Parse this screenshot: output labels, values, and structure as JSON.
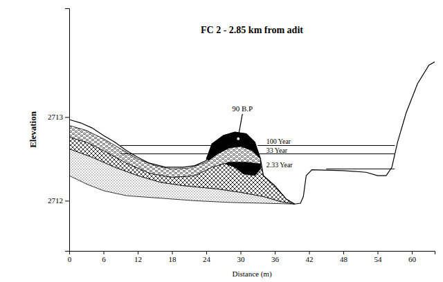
{
  "chart_data": {
    "type": "area",
    "title": "FC 2 - 2.85 km from adit",
    "xlabel": "Distance (m)",
    "ylabel": "Elevation",
    "xlim": [
      0,
      64
    ],
    "ylim": [
      2711.4,
      2714.3
    ],
    "xticks": [
      0,
      6,
      12,
      18,
      24,
      30,
      36,
      42,
      48,
      54,
      60
    ],
    "yticks": [
      2712,
      2713
    ],
    "grid": false,
    "series": [
      {
        "type": "area",
        "marker": "stipple",
        "color": "#000000",
        "x": [
          0,
          4,
          8,
          12,
          16,
          20,
          26,
          30,
          34,
          37,
          39.5,
          34,
          28,
          22,
          16,
          10,
          6,
          3,
          0
        ],
        "values": [
          2712.62,
          2712.52,
          2712.4,
          2712.3,
          2712.22,
          2712.18,
          2712.14,
          2712.1,
          2712.05,
          2711.99,
          2711.96,
          2711.97,
          2711.98,
          2712.0,
          2712.03,
          2712.06,
          2712.12,
          2712.2,
          2712.3
        ]
      },
      {
        "type": "area",
        "marker": "hatch",
        "color": "#000000",
        "x": [
          0,
          3,
          6,
          10,
          14,
          18,
          22,
          25,
          28,
          31,
          33.5,
          34,
          36,
          38,
          39.5,
          37,
          34,
          30,
          26,
          20,
          16,
          12,
          8,
          4,
          0
        ],
        "values": [
          2712.76,
          2712.7,
          2712.6,
          2712.45,
          2712.33,
          2712.28,
          2712.3,
          2712.4,
          2712.46,
          2712.46,
          2712.44,
          2712.3,
          2712.18,
          2712.02,
          2711.96,
          2711.99,
          2712.05,
          2712.1,
          2712.14,
          2712.18,
          2712.22,
          2712.3,
          2712.4,
          2712.52,
          2712.62
        ]
      },
      {
        "type": "area",
        "marker": "solid",
        "color": "#000000",
        "x": [
          24,
          25,
          27,
          29,
          31,
          32.5,
          33.5,
          33.5,
          32.5,
          30.5,
          29,
          27,
          25
        ],
        "values": [
          2712.5,
          2712.68,
          2712.78,
          2712.82,
          2712.8,
          2712.7,
          2712.5,
          2712.38,
          2712.3,
          2712.32,
          2712.4,
          2712.45,
          2712.45
        ]
      },
      {
        "type": "area",
        "marker": "gravel",
        "color": "#000000",
        "x": [
          0,
          3,
          6,
          9,
          12,
          15,
          18,
          21,
          24,
          26,
          28,
          30,
          32,
          33.5,
          33.5,
          31,
          28,
          25,
          22,
          18,
          14,
          10,
          6,
          3,
          0
        ],
        "values": [
          2712.9,
          2712.84,
          2712.74,
          2712.62,
          2712.5,
          2712.42,
          2712.38,
          2712.39,
          2712.46,
          2712.56,
          2712.63,
          2712.65,
          2712.6,
          2712.5,
          2712.44,
          2712.46,
          2712.46,
          2712.4,
          2712.3,
          2712.28,
          2712.33,
          2712.45,
          2712.6,
          2712.7,
          2712.76
        ]
      },
      {
        "type": "line",
        "color": "#000000",
        "x": [
          0,
          2,
          4,
          6,
          8,
          10,
          12,
          14,
          17,
          20,
          22,
          24,
          25,
          27,
          29,
          31,
          32.5,
          33.5,
          34,
          36,
          38,
          39.5,
          40.5,
          41,
          41.5,
          42.5,
          48,
          52,
          54,
          55.5,
          56.5,
          57.5,
          59,
          61,
          63,
          64
        ],
        "values": [
          2712.97,
          2712.93,
          2712.87,
          2712.78,
          2712.7,
          2712.6,
          2712.52,
          2712.45,
          2712.4,
          2712.4,
          2712.42,
          2712.48,
          2712.68,
          2712.78,
          2712.82,
          2712.8,
          2712.7,
          2712.5,
          2712.3,
          2712.18,
          2712.02,
          2711.96,
          2711.97,
          2712.05,
          2712.3,
          2712.37,
          2712.36,
          2712.34,
          2712.3,
          2712.3,
          2712.4,
          2712.7,
          2713.05,
          2713.4,
          2713.62,
          2713.66
        ]
      },
      {
        "type": "line",
        "name": "100 Year",
        "color": "#000000",
        "x": [
          9,
          25,
          29,
          33,
          57
        ],
        "values": [
          2712.66,
          2712.66,
          null,
          2712.66,
          2712.66
        ]
      },
      {
        "type": "line",
        "name": "33 Year",
        "color": "#000000",
        "x": [
          9,
          25,
          29,
          33,
          57
        ],
        "values": [
          2712.56,
          2712.56,
          null,
          2712.56,
          2712.56
        ]
      },
      {
        "type": "line",
        "name": "2.33 Year",
        "color": "#000000",
        "x": [
          45,
          57
        ],
        "values": [
          2712.38,
          2712.38
        ]
      }
    ],
    "annotations": [
      {
        "text": "90 B.P",
        "x": 29.6,
        "y": 2712.74
      }
    ]
  }
}
